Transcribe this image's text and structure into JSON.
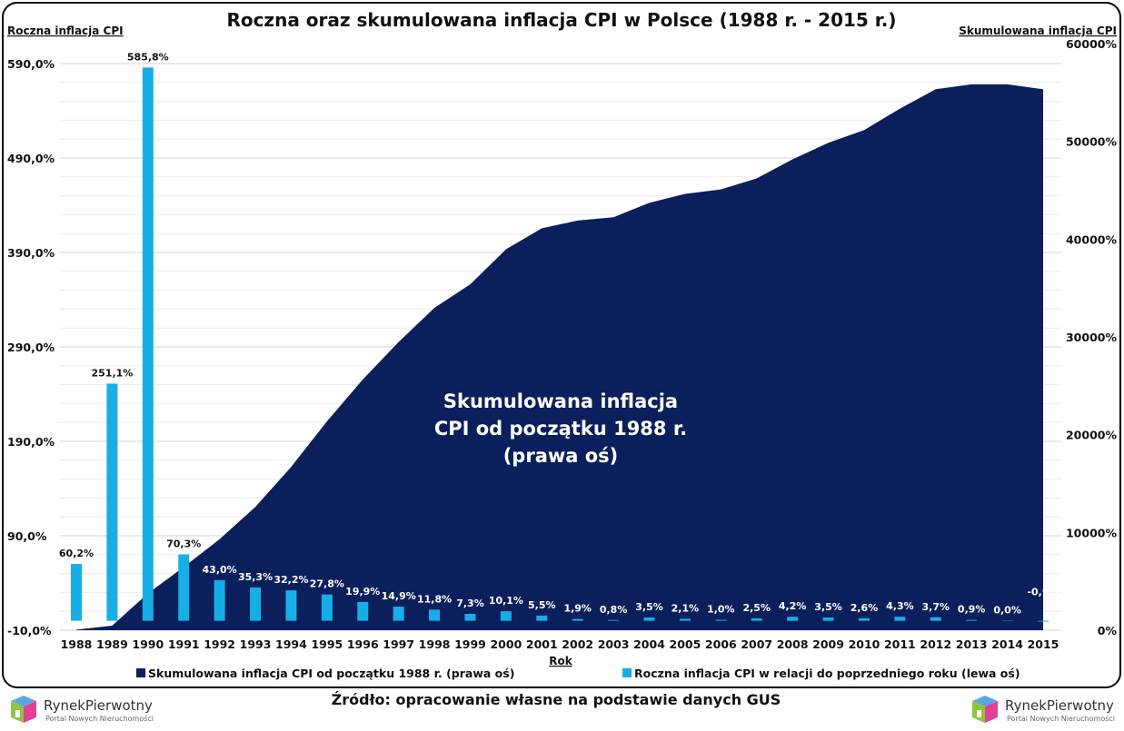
{
  "chart_data": {
    "type": "bar+area",
    "title": "Roczna oraz skumulowana inflacja CPI w Polsce (1988 r. - 2015 r.)",
    "xlabel": "Rok",
    "ylabel_left": "Roczna inflacja CPI",
    "ylabel_right": "Skumulowana inflacja CPI",
    "categories": [
      "1988",
      "1989",
      "1990",
      "1991",
      "1992",
      "1993",
      "1994",
      "1995",
      "1996",
      "1997",
      "1998",
      "1999",
      "2000",
      "2001",
      "2002",
      "2003",
      "2004",
      "2005",
      "2006",
      "2007",
      "2008",
      "2009",
      "2010",
      "2011",
      "2012",
      "2013",
      "2014",
      "2015"
    ],
    "left_ylim": [
      -10,
      590
    ],
    "left_ticks": [
      "-10,0%",
      "90,0%",
      "190,0%",
      "290,0%",
      "390,0%",
      "490,0%",
      "590,0%"
    ],
    "right_ylim": [
      0,
      60000
    ],
    "right_ticks": [
      "0%",
      "10000%",
      "20000%",
      "30000%",
      "40000%",
      "50000%",
      "60000%"
    ],
    "grid": true,
    "legend_position": "bottom",
    "series": [
      {
        "name": "Skumulowana inflacja CPI od początku 1988 r. (prawa oś)",
        "type": "area",
        "axis": "right",
        "color": "#0b1f5c",
        "values": [
          60,
          462,
          3757,
          6469,
          9294,
          12610,
          16700,
          21370,
          25640,
          29480,
          32970,
          35380,
          38960,
          41110,
          41900,
          42230,
          43710,
          44630,
          45080,
          46210,
          48160,
          49850,
          51150,
          53350,
          55330,
          55830,
          55830,
          55330
        ]
      },
      {
        "name": "Roczna inflacja CPI w relacji do poprzedniego roku (lewa oś)",
        "type": "bar",
        "axis": "left",
        "color": "#17aee8",
        "values": [
          60.2,
          251.1,
          585.8,
          70.3,
          43.0,
          35.3,
          32.2,
          27.8,
          19.9,
          14.9,
          11.8,
          7.3,
          10.1,
          5.5,
          1.9,
          0.8,
          3.5,
          2.1,
          1.0,
          2.5,
          4.2,
          3.5,
          2.6,
          4.3,
          3.7,
          0.9,
          0.0,
          -0.9
        ],
        "labels": [
          "60,2%",
          "251,1%",
          "585,8%",
          "70,3%",
          "43,0%",
          "35,3%",
          "32,2%",
          "27,8%",
          "19,9%",
          "14,9%",
          "11,8%",
          "7,3%",
          "10,1%",
          "5,5%",
          "1,9%",
          "0,8%",
          "3,5%",
          "2,1%",
          "1,0%",
          "2,5%",
          "4,2%",
          "3,5%",
          "2,6%",
          "4,3%",
          "3,7%",
          "0,9%",
          "0,0%",
          "-0,9%"
        ]
      }
    ],
    "annotation": [
      "Skumulowana inflacja",
      "CPI od początku 1988 r.",
      "(prawa oś)"
    ]
  },
  "source": "Źródło: opracowanie własne na podstawie danych GUS",
  "logo": {
    "name": "RynekPierwotny",
    "tagline": "Portal Nowych Nieruchomości"
  }
}
